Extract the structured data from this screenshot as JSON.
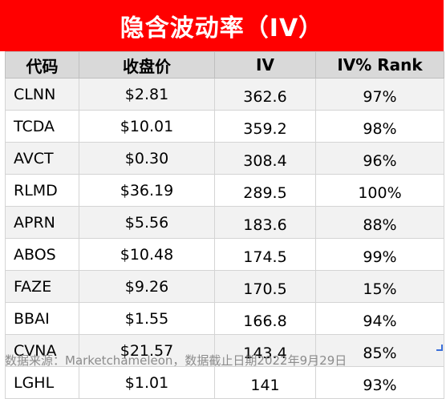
{
  "title": "隐含波动率（IV）",
  "headers": [
    "代码",
    "收盘价",
    "IV",
    "IV% Rank"
  ],
  "rows": [
    [
      "CLNN",
      "$2.81",
      "362.6",
      "97%"
    ],
    [
      "TCDA",
      "$10.01",
      "359.2",
      "98%"
    ],
    [
      "AVCT",
      "$0.30",
      "308.4",
      "96%"
    ],
    [
      "RLMD",
      "$36.19",
      "289.5",
      "100%"
    ],
    [
      "APRN",
      "$5.56",
      "183.6",
      "88%"
    ],
    [
      "ABOS",
      "$10.48",
      "174.5",
      "99%"
    ],
    [
      "FAZE",
      "$9.26",
      "170.5",
      "15%"
    ],
    [
      "BBAI",
      "$1.55",
      "166.8",
      "94%"
    ],
    [
      "CVNA",
      "$21.57",
      "143.4",
      "85%"
    ],
    [
      "LGHL",
      "$1.01",
      "141",
      "93%"
    ]
  ],
  "source": "数据来源：Marketchameleon，数据截止日期2022年9月29日",
  "colors": {
    "title_bg": "#ff0000",
    "header_bg": "#d9d9d9",
    "row_shade": "#f2f2f2"
  }
}
